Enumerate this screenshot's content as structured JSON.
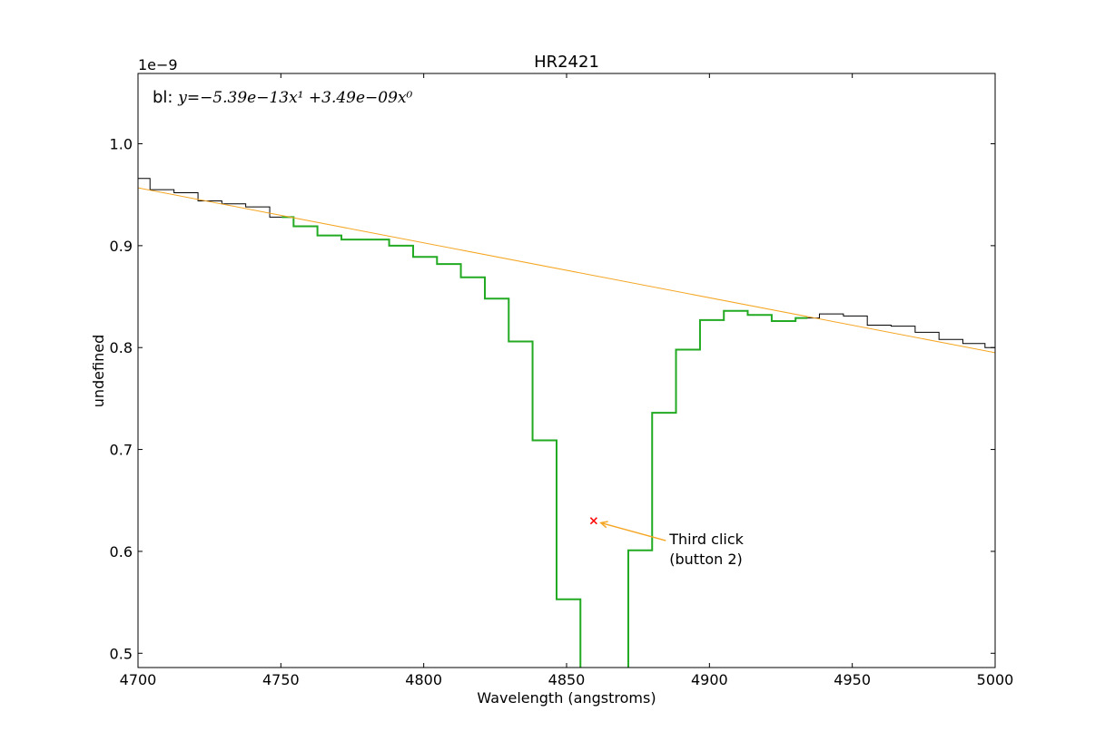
{
  "chart_data": {
    "type": "line",
    "title": "HR2421",
    "xlabel": "Wavelength (angstroms)",
    "ylabel": "undefined",
    "y_offset_label": "1e−9",
    "xlim": [
      4700,
      5000
    ],
    "ylim": [
      0.486,
      1.069
    ],
    "xticks": [
      4700,
      4750,
      4800,
      4850,
      4900,
      4950,
      5000
    ],
    "yticks": [
      0.5,
      0.6,
      0.7,
      0.8,
      0.9,
      1.0
    ],
    "ytick_labels": [
      "0.5",
      "0.6",
      "0.7",
      "0.8",
      "0.9",
      "1.0"
    ],
    "grid": false,
    "baseline_text": {
      "prefix": "bl: ",
      "formula": "y=−5.39e−13x¹ +3.49e−09x⁰"
    },
    "series": [
      {
        "color": "#000000",
        "style": "steps-mid",
        "x": [
          4700,
          4708.4,
          4716.8,
          4725.2,
          4733.5,
          4741.9,
          4750.3,
          4758.6,
          4767.0,
          4775.4,
          4783.7,
          4792.1,
          4800.5,
          4808.8,
          4817.2,
          4825.6,
          4833.9,
          4842.3,
          4850.7,
          4859.0,
          4867.4,
          4875.8,
          4884.1,
          4892.5,
          4900.9,
          4909.2,
          4917.6,
          4926.0,
          4934.3,
          4942.7,
          4951.1,
          4959.4,
          4967.8,
          4976.2,
          4984.5,
          4992.9,
          5000
        ],
        "y": [
          0.966,
          0.955,
          0.952,
          0.944,
          0.941,
          0.938,
          0.928,
          0.919,
          0.91,
          0.906,
          0.906,
          0.9,
          0.889,
          0.882,
          0.869,
          0.848,
          0.806,
          0.709,
          0.553,
          0.44,
          0.44,
          0.601,
          0.736,
          0.798,
          0.827,
          0.836,
          0.832,
          0.826,
          0.829,
          0.833,
          0.831,
          0.822,
          0.821,
          0.815,
          0.808,
          0.804,
          0.8
        ]
      },
      {
        "color": "#22aa22",
        "style": "steps-mid",
        "x": [
          4750.3,
          4758.6,
          4767.0,
          4775.4,
          4783.7,
          4792.1,
          4800.5,
          4808.8,
          4817.2,
          4825.6,
          4833.9,
          4842.3,
          4850.7,
          4859.0,
          4867.4,
          4875.8,
          4884.1,
          4892.5,
          4900.9,
          4909.2,
          4917.6,
          4926.0,
          4934.3
        ],
        "y": [
          0.928,
          0.919,
          0.91,
          0.906,
          0.906,
          0.9,
          0.889,
          0.882,
          0.869,
          0.848,
          0.806,
          0.709,
          0.553,
          0.44,
          0.44,
          0.601,
          0.736,
          0.798,
          0.827,
          0.836,
          0.832,
          0.826,
          0.829
        ]
      },
      {
        "color": "#f5a623",
        "style": "line",
        "x": [
          4700,
          5000
        ],
        "y": [
          0.9567,
          0.795
        ]
      }
    ],
    "marker": {
      "x": 4859.5,
      "y": 0.63,
      "color": "#ff0000",
      "symbol": "x"
    },
    "annotation": {
      "lines": [
        "Third click",
        "(button 2)"
      ],
      "text_x": 4886,
      "text_y": 0.607,
      "arrow_to_x": 4862,
      "arrow_to_y": 0.628,
      "arrow_color": "#f5a623"
    }
  }
}
